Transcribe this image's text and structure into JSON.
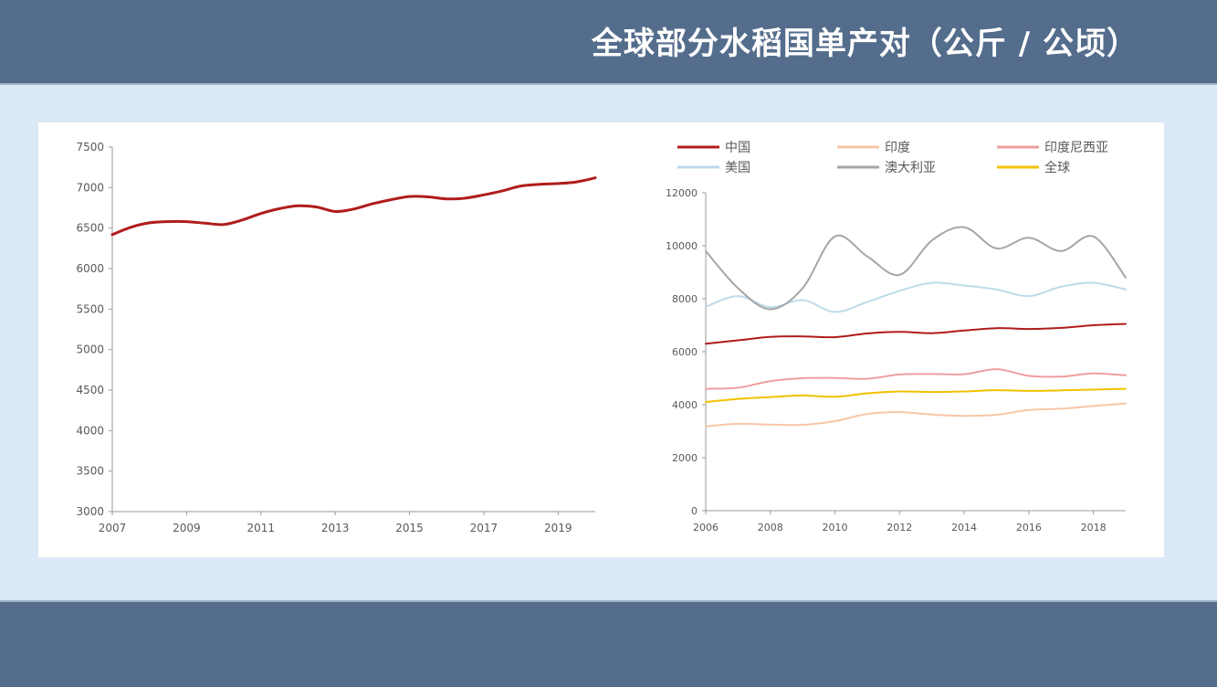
{
  "page": {
    "title": "全球部分水稻国单产对（公斤 / 公顷）"
  },
  "colors": {
    "header_band": "#546d8c",
    "background": "#dbe8f6",
    "panel": "#ffffff"
  },
  "chart_data": [
    {
      "type": "line",
      "title": "",
      "xlabel": "",
      "ylabel": "",
      "x_ticks": [
        "2007",
        "2009",
        "2011",
        "2013",
        "2015",
        "2017",
        "2019"
      ],
      "y_ticks": [
        "3000",
        "3500",
        "4000",
        "4500",
        "5000",
        "5500",
        "6000",
        "6500",
        "7000",
        "7500"
      ],
      "xlim": [
        2007,
        2020
      ],
      "ylim": [
        3000,
        7500
      ],
      "grid": false,
      "legend": "none",
      "series": [
        {
          "color": "#b01c1c",
          "x": [
            2007,
            2007.5,
            2008,
            2008.5,
            2009,
            2009.5,
            2010,
            2010.5,
            2011,
            2011.5,
            2012,
            2012.5,
            2013,
            2013.5,
            2014,
            2014.5,
            2015,
            2015.5,
            2016,
            2016.5,
            2017,
            2017.5,
            2018,
            2018.5,
            2019,
            2019.5,
            2020
          ],
          "values": [
            6420,
            6510,
            6565,
            6580,
            6580,
            6560,
            6545,
            6600,
            6680,
            6740,
            6775,
            6760,
            6705,
            6735,
            6800,
            6850,
            6890,
            6885,
            6860,
            6870,
            6910,
            6960,
            7020,
            7040,
            7050,
            7070,
            7120
          ]
        }
      ]
    },
    {
      "type": "line",
      "title": "",
      "xlabel": "",
      "ylabel": "",
      "x_ticks": [
        "2006",
        "2008",
        "2010",
        "2012",
        "2014",
        "2016",
        "2018"
      ],
      "y_ticks": [
        "0",
        "2000",
        "4000",
        "6000",
        "8000",
        "10000",
        "12000"
      ],
      "xlim": [
        2006,
        2019
      ],
      "ylim": [
        0,
        12000
      ],
      "grid": false,
      "legend": "top",
      "x": [
        2006,
        2007,
        2008,
        2009,
        2010,
        2011,
        2012,
        2013,
        2014,
        2015,
        2016,
        2017,
        2018,
        2019
      ],
      "series": [
        {
          "name": "中国",
          "color": "#b01c1c",
          "values": [
            6300,
            6430,
            6560,
            6580,
            6550,
            6690,
            6750,
            6700,
            6800,
            6890,
            6860,
            6900,
            7000,
            7050
          ]
        },
        {
          "name": "印度",
          "color": "#f6c7a6",
          "values": [
            3180,
            3280,
            3250,
            3240,
            3380,
            3650,
            3720,
            3630,
            3580,
            3620,
            3800,
            3850,
            3950,
            4050
          ]
        },
        {
          "name": "印度尼西亚",
          "color": "#ef9e9e",
          "values": [
            4600,
            4640,
            4890,
            5000,
            5010,
            4980,
            5140,
            5160,
            5150,
            5340,
            5090,
            5060,
            5180,
            5110
          ]
        },
        {
          "name": "美国",
          "color": "#bfdaea",
          "values": [
            7700,
            8100,
            7680,
            7950,
            7500,
            7880,
            8300,
            8600,
            8500,
            8350,
            8100,
            8450,
            8600,
            8350
          ]
        },
        {
          "name": "澳大利亚",
          "color": "#a6a6a6",
          "values": [
            9800,
            8400,
            7600,
            8400,
            10350,
            9600,
            8900,
            10200,
            10700,
            9900,
            10300,
            9800,
            10350,
            8800
          ]
        },
        {
          "name": "全球",
          "color": "#f2c200",
          "values": [
            4100,
            4220,
            4290,
            4350,
            4300,
            4430,
            4500,
            4480,
            4500,
            4550,
            4520,
            4540,
            4570,
            4600
          ]
        }
      ]
    }
  ]
}
